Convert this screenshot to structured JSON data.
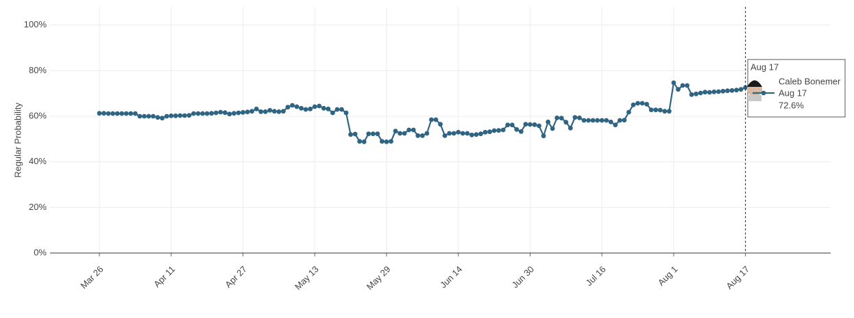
{
  "chart_data": {
    "type": "line",
    "y_label": "Regular Probability",
    "x": [
      "Mar 26",
      "Mar 27",
      "Mar 28",
      "Mar 29",
      "Mar 30",
      "Mar 31",
      "Apr 1",
      "Apr 2",
      "Apr 3",
      "Apr 4",
      "Apr 5",
      "Apr 6",
      "Apr 7",
      "Apr 8",
      "Apr 9",
      "Apr 10",
      "Apr 11",
      "Apr 12",
      "Apr 13",
      "Apr 14",
      "Apr 15",
      "Apr 16",
      "Apr 17",
      "Apr 18",
      "Apr 19",
      "Apr 20",
      "Apr 21",
      "Apr 22",
      "Apr 23",
      "Apr 24",
      "Apr 25",
      "Apr 26",
      "Apr 27",
      "Apr 28",
      "Apr 29",
      "Apr 30",
      "May 1",
      "May 2",
      "May 3",
      "May 4",
      "May 5",
      "May 6",
      "May 7",
      "May 8",
      "May 9",
      "May 10",
      "May 11",
      "May 12",
      "May 13",
      "May 14",
      "May 15",
      "May 16",
      "May 17",
      "May 18",
      "May 19",
      "May 20",
      "May 21",
      "May 22",
      "May 23",
      "May 24",
      "May 25",
      "May 26",
      "May 27",
      "May 28",
      "May 29",
      "May 30",
      "May 31",
      "Jun 1",
      "Jun 2",
      "Jun 3",
      "Jun 4",
      "Jun 5",
      "Jun 6",
      "Jun 7",
      "Jun 8",
      "Jun 9",
      "Jun 10",
      "Jun 11",
      "Jun 12",
      "Jun 13",
      "Jun 14",
      "Jun 15",
      "Jun 16",
      "Jun 17",
      "Jun 18",
      "Jun 19",
      "Jun 20",
      "Jun 21",
      "Jun 22",
      "Jun 23",
      "Jun 24",
      "Jun 25",
      "Jun 26",
      "Jun 27",
      "Jun 28",
      "Jun 29",
      "Jun 30",
      "Jul 1",
      "Jul 2",
      "Jul 3",
      "Jul 4",
      "Jul 5",
      "Jul 6",
      "Jul 7",
      "Jul 8",
      "Jul 9",
      "Jul 10",
      "Jul 11",
      "Jul 12",
      "Jul 13",
      "Jul 14",
      "Jul 15",
      "Jul 16",
      "Jul 17",
      "Jul 18",
      "Jul 19",
      "Jul 20",
      "Jul 21",
      "Jul 22",
      "Jul 23",
      "Jul 24",
      "Jul 25",
      "Jul 26",
      "Jul 27",
      "Jul 28",
      "Jul 29",
      "Jul 30",
      "Jul 31",
      "Aug 1",
      "Aug 2",
      "Aug 3",
      "Aug 4",
      "Aug 5",
      "Aug 6",
      "Aug 7",
      "Aug 8",
      "Aug 9",
      "Aug 10",
      "Aug 11",
      "Aug 12",
      "Aug 13",
      "Aug 14",
      "Aug 15",
      "Aug 16",
      "Aug 17"
    ],
    "series": [
      {
        "name": "Caleb Bonemer",
        "color": "#2f6482",
        "values": [
          61.3,
          61.3,
          61.2,
          61.2,
          61.2,
          61.2,
          61.2,
          61.2,
          61.2,
          60,
          60,
          60,
          60,
          59.5,
          59.2,
          60,
          60.2,
          60.2,
          60.3,
          60.3,
          60.4,
          61.2,
          61.2,
          61.2,
          61.2,
          61.3,
          61.5,
          61.8,
          61.6,
          61,
          61.3,
          61.5,
          61.7,
          61.9,
          62.2,
          63.2,
          62,
          62,
          62.6,
          62.2,
          62,
          62.2,
          64,
          64.8,
          64.2,
          63.5,
          63,
          63.2,
          64.2,
          64.5,
          63.5,
          63.2,
          61.5,
          63,
          63,
          61.5,
          52,
          52.2,
          49,
          48.8,
          52.3,
          52.3,
          52.3,
          49,
          48.8,
          49,
          53.5,
          52.5,
          52.5,
          54,
          54,
          51.5,
          51.5,
          52.5,
          58.5,
          58.5,
          56.5,
          51.5,
          52.5,
          52.5,
          53,
          52.5,
          52.5,
          51.8,
          52,
          52.3,
          53,
          53.2,
          53.7,
          53.8,
          54,
          56.2,
          56.2,
          54.2,
          53.3,
          56.5,
          56.4,
          56.3,
          55.8,
          51.4,
          57.5,
          54.6,
          59.3,
          59.2,
          57.4,
          54.8,
          59.5,
          59.3,
          58.2,
          58.2,
          58.2,
          58.2,
          58.2,
          58.2,
          57.5,
          56.2,
          58.2,
          58.3,
          61.8,
          65,
          65.7,
          65.7,
          65.3,
          62.8,
          62.8,
          62.7,
          62.2,
          62.2,
          74.7,
          71.8,
          73.5,
          73.5,
          69.5,
          69.8,
          70.2,
          70.6,
          70.5,
          70.7,
          70.8,
          71,
          71.2,
          71.3,
          71.5,
          71.8,
          72.6
        ]
      }
    ],
    "xlim": [
      "Mar 15",
      "Sep 5"
    ],
    "xticks": [
      "Mar 26",
      "Apr 11",
      "Apr 27",
      "May 13",
      "May 29",
      "Jun 14",
      "Jun 30",
      "Jul 16",
      "Aug 1",
      "Aug 17"
    ],
    "ylim": [
      0,
      108
    ],
    "yticks": [
      {
        "value": 0,
        "label": "0%"
      },
      {
        "value": 20,
        "label": "20%"
      },
      {
        "value": 40,
        "label": "40%"
      },
      {
        "value": 60,
        "label": "60%"
      },
      {
        "value": 80,
        "label": "80%"
      },
      {
        "value": 100,
        "label": "100%"
      }
    ],
    "grid": true,
    "tooltip": {
      "header": "Aug 17",
      "value_label": "72.6%"
    }
  }
}
